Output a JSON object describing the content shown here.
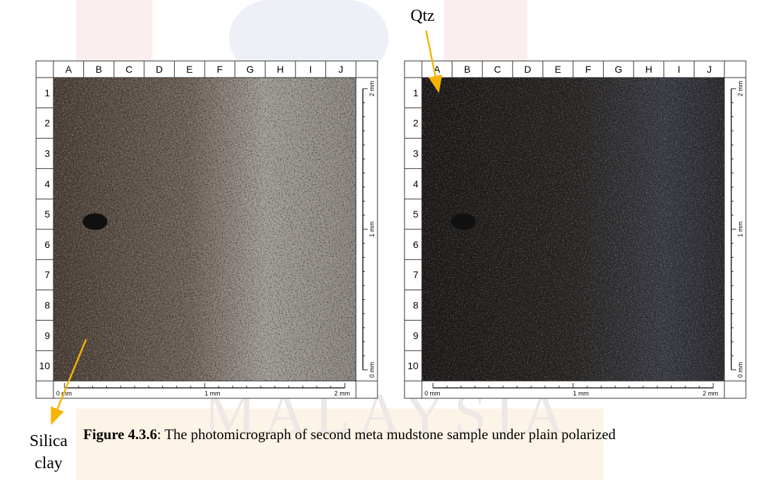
{
  "watermark": "MALAYSIA",
  "panels": [
    {
      "columns": [
        "A",
        "B",
        "C",
        "D",
        "E",
        "F",
        "G",
        "H",
        "I",
        "J"
      ],
      "rows": [
        "1",
        "2",
        "3",
        "4",
        "5",
        "6",
        "7",
        "8",
        "9",
        "10"
      ],
      "scale_x": [
        "0 mm",
        "1 mm",
        "2 mm"
      ],
      "scale_y": [
        "2 mm",
        "1 mm",
        "0 mm"
      ]
    },
    {
      "columns": [
        "A",
        "B",
        "C",
        "D",
        "E",
        "F",
        "G",
        "H",
        "I",
        "J"
      ],
      "rows": [
        "1",
        "2",
        "3",
        "4",
        "5",
        "6",
        "7",
        "8",
        "9",
        "10"
      ],
      "scale_x": [
        "0 mm",
        "1 mm",
        "2 mm"
      ],
      "scale_y": [
        "2 mm",
        "1 mm",
        "0 mm"
      ]
    }
  ],
  "annotations": {
    "qtz": "Qtz",
    "silica_clay": [
      "Silica",
      "clay"
    ]
  },
  "caption": {
    "label": "Figure 4.3.6",
    "text": ": The photomicrograph of second meta mudstone sample under plain polarized"
  }
}
